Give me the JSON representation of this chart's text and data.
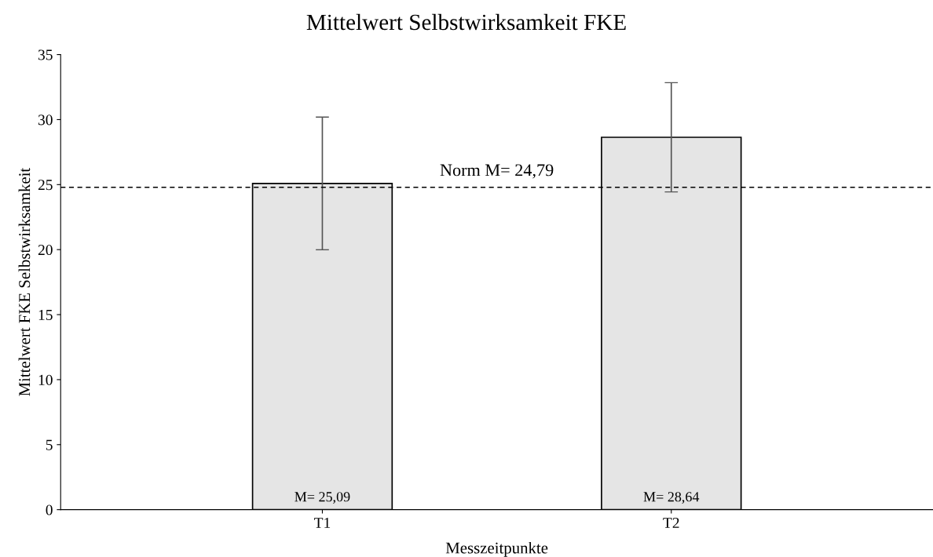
{
  "chart_data": {
    "type": "bar",
    "title": "Mittelwert Selbstwirksamkeit FKE",
    "xlabel": "Messzeitpunkte",
    "ylabel": "Mittelwert FKE Selbstwirksamkeit",
    "categories": [
      "T1",
      "T2"
    ],
    "values": [
      25.09,
      28.64
    ],
    "errors": [
      5.1,
      4.2
    ],
    "value_labels": [
      "M= 25,09",
      "M= 28,64"
    ],
    "color": "#e5e5e5",
    "ylim": [
      0,
      35
    ],
    "yticks": [
      0,
      5,
      10,
      15,
      20,
      25,
      30,
      35
    ],
    "grid": false,
    "ref_lines": [
      {
        "axis": "y",
        "value": 24.79,
        "label": "Norm M= 24,79",
        "color": "#000000",
        "line_style": "dashed"
      }
    ]
  }
}
